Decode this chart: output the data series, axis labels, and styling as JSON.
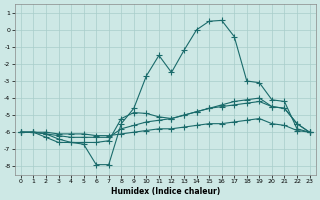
{
  "xlabel": "Humidex (Indice chaleur)",
  "bg_color": "#cde8e5",
  "grid_color": "#a8ceca",
  "line_color": "#1a6b6b",
  "xlim": [
    -0.5,
    23.5
  ],
  "ylim": [
    -8.5,
    1.5
  ],
  "yticks": [
    1,
    0,
    -1,
    -2,
    -3,
    -4,
    -5,
    -6,
    -7,
    -8
  ],
  "xticks": [
    0,
    1,
    2,
    3,
    4,
    5,
    6,
    7,
    8,
    9,
    10,
    11,
    12,
    13,
    14,
    15,
    16,
    17,
    18,
    19,
    20,
    21,
    22,
    23
  ],
  "line_high_x": [
    0,
    1,
    2,
    3,
    4,
    5,
    6,
    7,
    8,
    9,
    10,
    11,
    12,
    13,
    14,
    15,
    16,
    17,
    18,
    19,
    20,
    21,
    22,
    23
  ],
  "line_high_y": [
    -6.0,
    -6.0,
    -6.3,
    -6.6,
    -6.6,
    -6.7,
    -7.9,
    -7.9,
    -5.5,
    -4.6,
    -2.7,
    -1.5,
    -2.5,
    -1.2,
    0.0,
    0.5,
    0.55,
    -0.4,
    -3.0,
    -3.1,
    -4.1,
    -4.2,
    -5.8,
    -6.0
  ],
  "line_mid1_x": [
    0,
    1,
    2,
    3,
    4,
    5,
    6,
    7,
    8,
    9,
    10,
    11,
    12,
    13,
    14,
    15,
    16,
    17,
    18,
    19,
    20,
    21,
    22,
    23
  ],
  "line_mid1_y": [
    -6.0,
    -6.0,
    -6.1,
    -6.4,
    -6.6,
    -6.6,
    -6.6,
    -6.5,
    -5.2,
    -4.85,
    -4.9,
    -5.1,
    -5.2,
    -5.0,
    -4.8,
    -4.6,
    -4.4,
    -4.2,
    -4.1,
    -4.0,
    -4.5,
    -4.6,
    -5.5,
    -6.0
  ],
  "line_mid2_x": [
    0,
    1,
    2,
    3,
    4,
    5,
    6,
    7,
    8,
    9,
    10,
    11,
    12,
    13,
    14,
    15,
    16,
    17,
    18,
    19,
    20,
    21,
    22,
    23
  ],
  "line_mid2_y": [
    -6.0,
    -6.0,
    -6.1,
    -6.2,
    -6.3,
    -6.3,
    -6.3,
    -6.3,
    -5.8,
    -5.6,
    -5.4,
    -5.3,
    -5.2,
    -5.0,
    -4.8,
    -4.6,
    -4.5,
    -4.4,
    -4.3,
    -4.2,
    -4.5,
    -4.6,
    -5.5,
    -6.0
  ],
  "line_flat_x": [
    0,
    1,
    2,
    3,
    4,
    5,
    6,
    7,
    8,
    9,
    10,
    11,
    12,
    13,
    14,
    15,
    16,
    17,
    18,
    19,
    20,
    21,
    22,
    23
  ],
  "line_flat_y": [
    -6.0,
    -6.0,
    -6.0,
    -6.1,
    -6.1,
    -6.1,
    -6.2,
    -6.2,
    -6.1,
    -6.0,
    -5.9,
    -5.8,
    -5.8,
    -5.7,
    -5.6,
    -5.5,
    -5.5,
    -5.4,
    -5.3,
    -5.2,
    -5.5,
    -5.6,
    -5.9,
    -6.0
  ]
}
